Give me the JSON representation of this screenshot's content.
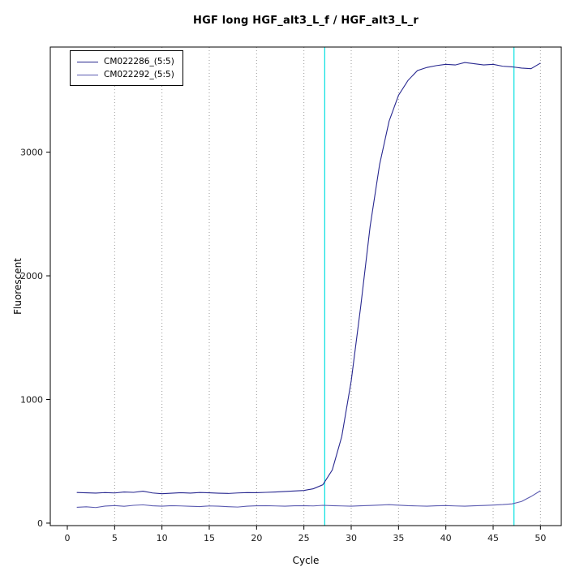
{
  "chart_data": {
    "type": "line",
    "title": "HGF long HGF_alt3_L_f / HGF_alt3_L_r",
    "xlabel": "Cycle",
    "ylabel": "Fluorescent",
    "xlim": [
      -1.8,
      52.2
    ],
    "ylim": [
      -20,
      3850
    ],
    "x_ticks": [
      0,
      5,
      10,
      15,
      20,
      25,
      30,
      35,
      40,
      45,
      50
    ],
    "y_ticks": [
      0,
      1000,
      2000,
      3000
    ],
    "grid_x": [
      5,
      10,
      15,
      20,
      25,
      30,
      35,
      40,
      45,
      50
    ],
    "grid_style": "dotted",
    "legend_position": "top-left",
    "threshold_lines": {
      "x": [
        27.2,
        47.2
      ],
      "color": "#00E0E0"
    },
    "x": [
      1,
      2,
      3,
      4,
      5,
      6,
      7,
      8,
      9,
      10,
      11,
      12,
      13,
      14,
      15,
      16,
      17,
      18,
      19,
      20,
      21,
      22,
      23,
      24,
      25,
      26,
      27,
      28,
      29,
      30,
      31,
      32,
      33,
      34,
      35,
      36,
      37,
      38,
      39,
      40,
      41,
      42,
      43,
      44,
      45,
      46,
      47,
      48,
      49,
      50
    ],
    "series": [
      {
        "name": "CM022286_(5:5)",
        "color": "#27278F",
        "values": [
          248,
          245,
          243,
          247,
          244,
          252,
          249,
          258,
          244,
          238,
          242,
          246,
          243,
          248,
          245,
          242,
          240,
          244,
          247,
          246,
          249,
          252,
          256,
          260,
          264,
          278,
          310,
          430,
          700,
          1150,
          1750,
          2400,
          2900,
          3250,
          3460,
          3580,
          3660,
          3685,
          3700,
          3710,
          3705,
          3725,
          3715,
          3705,
          3710,
          3695,
          3690,
          3680,
          3675,
          3720
        ]
      },
      {
        "name": "CM022292_(5:5)",
        "color": "#5A5AB0",
        "values": [
          128,
          132,
          126,
          138,
          142,
          136,
          144,
          148,
          140,
          137,
          141,
          139,
          136,
          134,
          139,
          137,
          133,
          130,
          137,
          140,
          141,
          139,
          137,
          140,
          141,
          139,
          144,
          141,
          139,
          137,
          140,
          143,
          146,
          149,
          145,
          141,
          139,
          137,
          140,
          142,
          139,
          137,
          140,
          143,
          146,
          150,
          156,
          175,
          215,
          262
        ]
      }
    ]
  }
}
